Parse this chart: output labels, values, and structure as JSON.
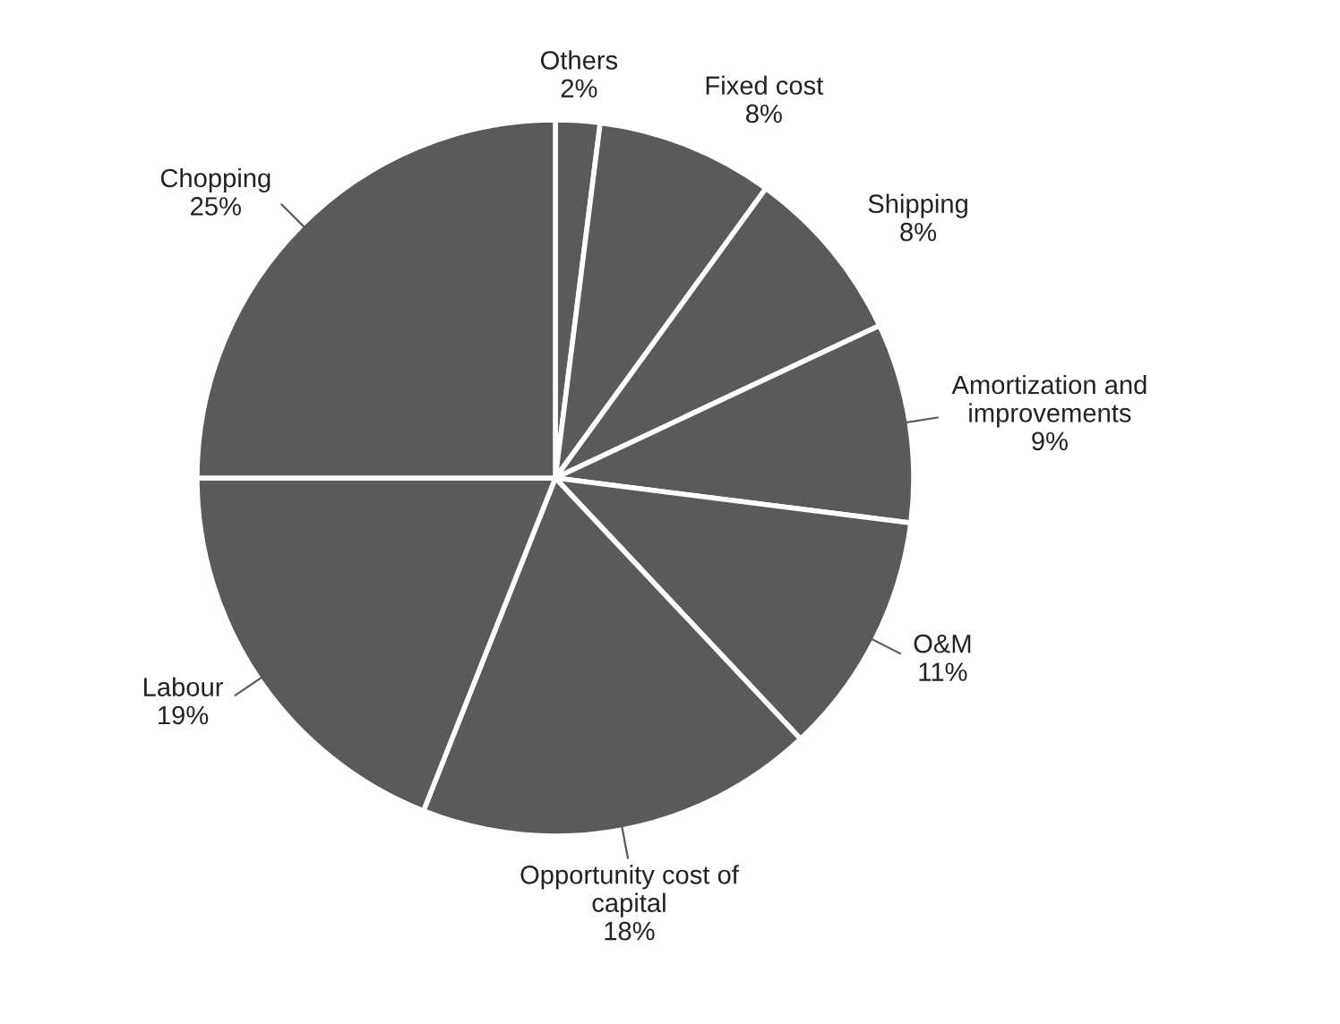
{
  "chart_data": {
    "type": "pie",
    "categories": [
      "Others",
      "Fixed cost",
      "Shipping",
      "Amortization and\nimprovements",
      "O&M",
      "Opportunity cost of\ncapital",
      "Labour",
      "Chopping"
    ],
    "values": [
      2,
      8,
      8,
      9,
      11,
      18,
      19,
      25
    ],
    "colors": [
      "#5a5a5a",
      "#5a5a5a",
      "#5a5a5a",
      "#5a5a5a",
      "#5a5a5a",
      "#5a5a5a",
      "#5a5a5a",
      "#5a5a5a"
    ],
    "value_labels": [
      "2%",
      "8%",
      "8%",
      "9%",
      "11%",
      "18%",
      "19%",
      "25%"
    ],
    "legend": false
  }
}
